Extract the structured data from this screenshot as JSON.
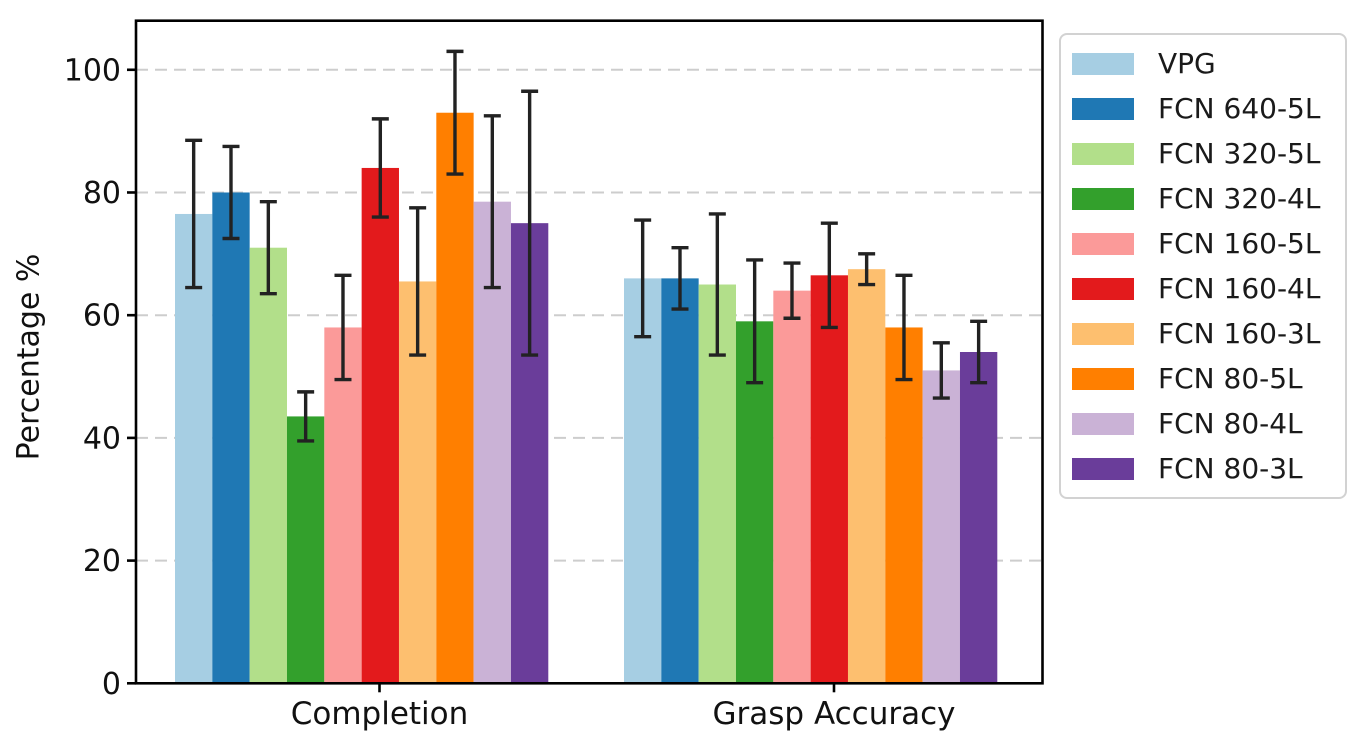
{
  "chart_data": {
    "type": "bar",
    "title": "",
    "ylabel": "Percentage %",
    "categories": [
      "Completion",
      "Grasp Accuracy"
    ],
    "ylim": [
      0,
      108
    ],
    "yticks": [
      0,
      20,
      40,
      60,
      80,
      100
    ],
    "grid": true,
    "grid_style": "dashed-horizontal",
    "legend_position": "outside-right-top",
    "error_bars": "symmetric-with-caps",
    "series": [
      {
        "name": "VPG",
        "color": "#a6cee3",
        "values": [
          76.5,
          66.0
        ],
        "errors": [
          12.0,
          9.5
        ]
      },
      {
        "name": "FCN 640-5L",
        "color": "#1f78b4",
        "values": [
          80.0,
          66.0
        ],
        "errors": [
          7.5,
          5.0
        ]
      },
      {
        "name": "FCN 320-5L",
        "color": "#b2df8a",
        "values": [
          71.0,
          65.0
        ],
        "errors": [
          7.5,
          11.5
        ]
      },
      {
        "name": "FCN 320-4L",
        "color": "#33a02c",
        "values": [
          43.5,
          59.0
        ],
        "errors": [
          4.0,
          10.0
        ]
      },
      {
        "name": "FCN 160-5L",
        "color": "#fb9a99",
        "values": [
          58.0,
          64.0
        ],
        "errors": [
          8.5,
          4.5
        ]
      },
      {
        "name": "FCN 160-4L",
        "color": "#e31a1c",
        "values": [
          84.0,
          66.5
        ],
        "errors": [
          8.0,
          8.5
        ]
      },
      {
        "name": "FCN 160-3L",
        "color": "#fdbf6f",
        "values": [
          65.5,
          67.5
        ],
        "errors": [
          12.0,
          2.5
        ]
      },
      {
        "name": "FCN 80-5L",
        "color": "#ff7f00",
        "values": [
          93.0,
          58.0
        ],
        "errors": [
          10.0,
          8.5
        ]
      },
      {
        "name": "FCN 80-4L",
        "color": "#cab2d6",
        "values": [
          78.5,
          51.0
        ],
        "errors": [
          14.0,
          4.5
        ]
      },
      {
        "name": "FCN 80-3L",
        "color": "#6a3d9a",
        "values": [
          75.0,
          54.0
        ],
        "errors": [
          21.5,
          5.0
        ]
      }
    ],
    "colors": {
      "axis": "#000000",
      "grid": "#cdcdcd",
      "error_bar": "#222222",
      "tick_text": "#111111",
      "legend_border": "#d2d2d2",
      "background": "#ffffff"
    }
  }
}
